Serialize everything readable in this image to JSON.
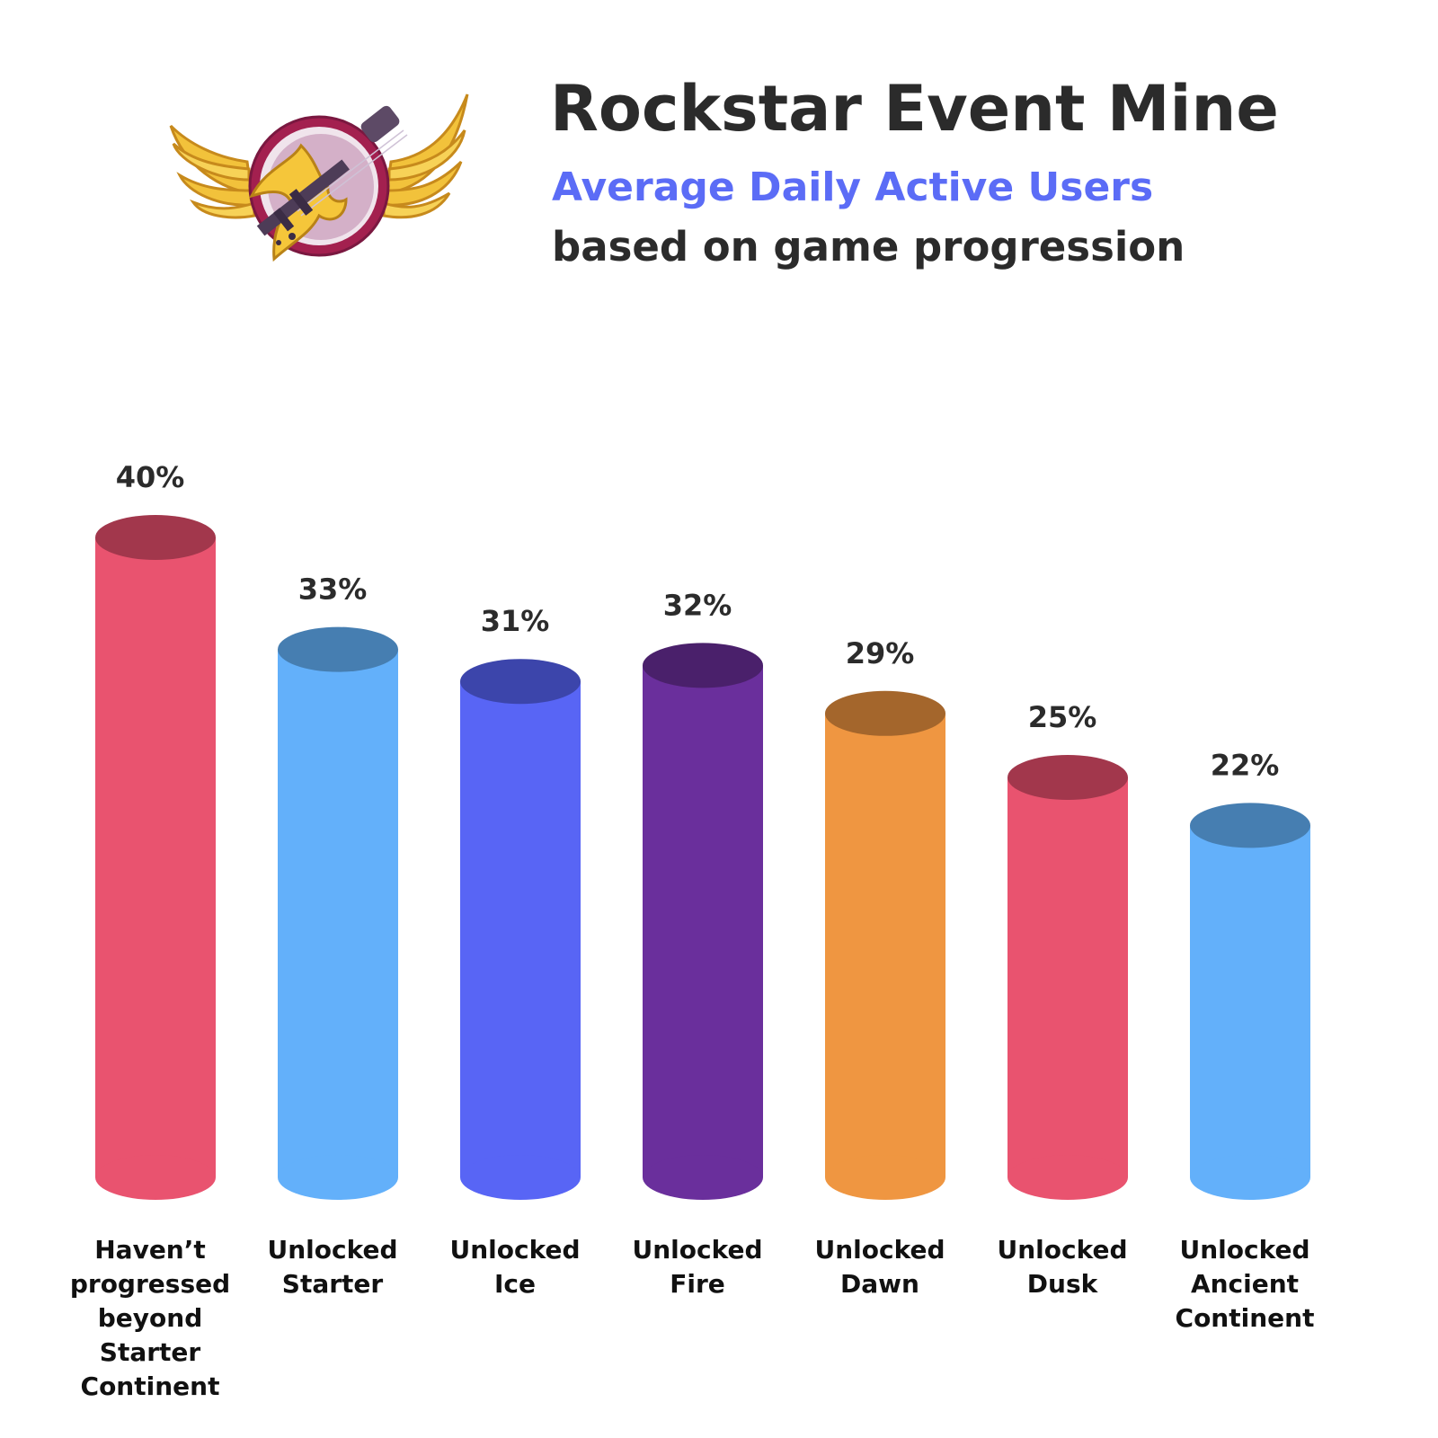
{
  "title": "Rockstar Event Mine",
  "subtitle": "Average Daily Active Users",
  "subtitle2": "based on game progression",
  "logo": {
    "icon": "winged-guitar-emblem"
  },
  "chart_data": {
    "type": "bar",
    "style": "cylinder",
    "categories": [
      [
        "Haven’t",
        "progressed",
        "beyond",
        "Starter",
        "Continent"
      ],
      [
        "Unlocked",
        "Starter"
      ],
      [
        "Unlocked",
        "Ice"
      ],
      [
        "Unlocked",
        "Fire"
      ],
      [
        "Unlocked",
        "Dawn"
      ],
      [
        "Unlocked",
        "Dusk"
      ],
      [
        "Unlocked",
        "Ancient",
        "Continent"
      ]
    ],
    "values": [
      40,
      33,
      31,
      32,
      29,
      25,
      22
    ],
    "value_labels": [
      "40%",
      "33%",
      "31%",
      "32%",
      "29%",
      "25%",
      "22%"
    ],
    "unit": "%",
    "ylim": [
      0,
      40
    ],
    "grid": false,
    "legend": false,
    "colors": [
      {
        "body": "#e9536f",
        "top": "#a2374c"
      },
      {
        "body": "#63b0fa",
        "top": "#467eb1"
      },
      {
        "body": "#5865f5",
        "top": "#3c45ab"
      },
      {
        "body": "#6a2f9c",
        "top": "#4a206b"
      },
      {
        "body": "#ef9641",
        "top": "#a4662c"
      },
      {
        "body": "#e9536f",
        "top": "#a2374c"
      },
      {
        "body": "#63b0fa",
        "top": "#467eb1"
      }
    ]
  }
}
